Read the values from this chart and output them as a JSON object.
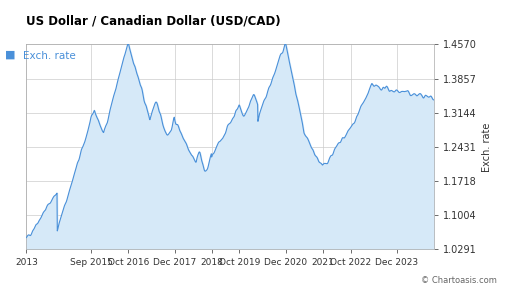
{
  "title": "US Dollar / Canadian Dollar (USD/CAD)",
  "legend_label": "Exch. rate",
  "ylabel_right": "Exch. rate",
  "copyright": "© Chartoasis.com",
  "title_color": "#000000",
  "legend_color": "#4a90d9",
  "line_color": "#4a90d9",
  "fill_color": "#d6e9f8",
  "background_color": "#ffffff",
  "grid_color": "#cccccc",
  "yticks": [
    1.0291,
    1.1004,
    1.1718,
    1.2431,
    1.3144,
    1.3857,
    1.457
  ],
  "ylim": [
    1.0291,
    1.457
  ],
  "x_tick_labels": [
    "2013",
    "Sep 2015",
    "Oct 2016",
    "Dec 2017",
    "2018",
    "Oct 2019",
    "Dec 2020",
    "2021",
    "Oct 2022",
    "Dec 2023"
  ],
  "x_tick_positions": [
    0,
    21,
    33,
    48,
    60,
    69,
    84,
    96,
    105,
    120
  ],
  "total_points": 132
}
